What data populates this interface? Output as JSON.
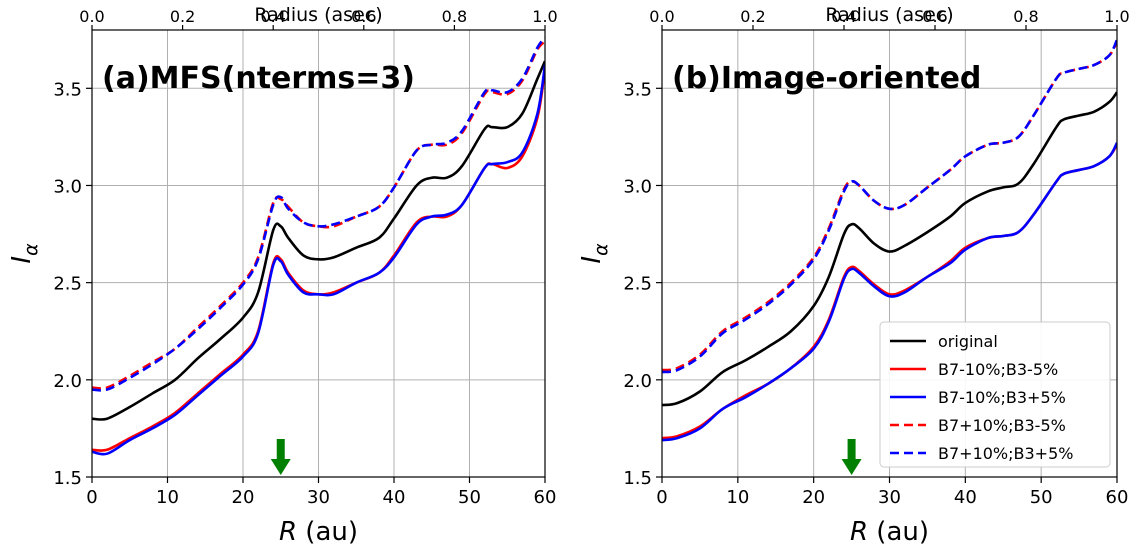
{
  "chart_data": [
    {
      "type": "line",
      "title": "(a)MFS(nterms=3)",
      "xlabel": "R (au)",
      "ylabel": "I_α",
      "top_xlabel": "Radius (asec)",
      "xlim": [
        0,
        60
      ],
      "ylim": [
        1.5,
        3.8
      ],
      "xticks": [
        0,
        10,
        20,
        30,
        40,
        50,
        60
      ],
      "yticks": [
        1.5,
        2.0,
        2.5,
        3.0,
        3.5
      ],
      "top_xticks": [
        0.0,
        0.2,
        0.4,
        0.6,
        0.8,
        1.0
      ],
      "top_xlim": [
        0.0,
        1.0
      ],
      "grid": true,
      "arrow_x": 25,
      "arrow_color": "#008000",
      "x": [
        0,
        2,
        5,
        8,
        11,
        14,
        17,
        20,
        22,
        24,
        25,
        26,
        28,
        30,
        32,
        35,
        38,
        40,
        43,
        45,
        47,
        49,
        52,
        53,
        55,
        57,
        59,
        60
      ],
      "series": [
        {
          "name": "original",
          "color": "#000000",
          "dash": false,
          "values": [
            1.8,
            1.8,
            1.86,
            1.93,
            2.0,
            2.11,
            2.21,
            2.32,
            2.45,
            2.77,
            2.79,
            2.73,
            2.64,
            2.62,
            2.63,
            2.68,
            2.73,
            2.83,
            3.0,
            3.04,
            3.04,
            3.1,
            3.29,
            3.3,
            3.3,
            3.37,
            3.55,
            3.64
          ]
        },
        {
          "name": "B7-10%;B3-5%",
          "color": "#ff0000",
          "dash": false,
          "values": [
            1.64,
            1.64,
            1.7,
            1.76,
            1.83,
            1.93,
            2.03,
            2.13,
            2.25,
            2.6,
            2.62,
            2.55,
            2.46,
            2.44,
            2.45,
            2.5,
            2.55,
            2.64,
            2.81,
            2.84,
            2.84,
            2.9,
            3.09,
            3.11,
            3.09,
            3.15,
            3.35,
            3.6
          ]
        },
        {
          "name": "B7-10%;B3+5%",
          "color": "#0000ff",
          "dash": false,
          "values": [
            1.63,
            1.62,
            1.69,
            1.75,
            1.82,
            1.92,
            2.02,
            2.12,
            2.24,
            2.59,
            2.61,
            2.54,
            2.45,
            2.44,
            2.44,
            2.5,
            2.55,
            2.63,
            2.8,
            2.84,
            2.85,
            2.9,
            3.09,
            3.11,
            3.12,
            3.17,
            3.37,
            3.62
          ]
        },
        {
          "name": "B7+10%;B3-5%",
          "color": "#ff0000",
          "dash": true,
          "values": [
            1.96,
            1.96,
            2.02,
            2.09,
            2.16,
            2.27,
            2.38,
            2.5,
            2.63,
            2.91,
            2.93,
            2.89,
            2.81,
            2.79,
            2.79,
            2.84,
            2.89,
            2.99,
            3.18,
            3.21,
            3.21,
            3.27,
            3.47,
            3.48,
            3.47,
            3.54,
            3.7,
            3.74
          ]
        },
        {
          "name": "B7+10%;B3+5%",
          "color": "#0000ff",
          "dash": true,
          "values": [
            1.95,
            1.95,
            2.01,
            2.08,
            2.16,
            2.26,
            2.37,
            2.49,
            2.62,
            2.9,
            2.94,
            2.88,
            2.81,
            2.79,
            2.8,
            2.84,
            2.89,
            2.99,
            3.18,
            3.21,
            3.22,
            3.28,
            3.48,
            3.49,
            3.48,
            3.55,
            3.71,
            3.76
          ]
        }
      ]
    },
    {
      "type": "line",
      "title": "(b)Image-oriented",
      "xlabel": "R (au)",
      "ylabel": "I_α",
      "top_xlabel": "Radius (asec)",
      "xlim": [
        0,
        60
      ],
      "ylim": [
        1.5,
        3.8
      ],
      "xticks": [
        0,
        10,
        20,
        30,
        40,
        50,
        60
      ],
      "yticks": [
        1.5,
        2.0,
        2.5,
        3.0,
        3.5
      ],
      "top_xticks": [
        0.0,
        0.2,
        0.4,
        0.6,
        0.8,
        1.0
      ],
      "top_xlim": [
        0.0,
        1.0
      ],
      "grid": true,
      "legend_position": "lower-right",
      "arrow_x": 25,
      "arrow_color": "#008000",
      "x": [
        0,
        2,
        5,
        8,
        11,
        14,
        17,
        20,
        22,
        24,
        25,
        26,
        28,
        30,
        32,
        35,
        38,
        40,
        43,
        45,
        47,
        49,
        52,
        53,
        55,
        57,
        59,
        60
      ],
      "series": [
        {
          "name": "original",
          "color": "#000000",
          "dash": false,
          "values": [
            1.87,
            1.88,
            1.94,
            2.04,
            2.1,
            2.17,
            2.25,
            2.38,
            2.53,
            2.75,
            2.8,
            2.78,
            2.7,
            2.66,
            2.69,
            2.76,
            2.84,
            2.91,
            2.97,
            2.99,
            3.01,
            3.11,
            3.3,
            3.34,
            3.36,
            3.38,
            3.43,
            3.48
          ]
        },
        {
          "name": "B7-10%;B3-5%",
          "color": "#ff0000",
          "dash": false,
          "values": [
            1.7,
            1.71,
            1.76,
            1.85,
            1.92,
            1.98,
            2.06,
            2.17,
            2.31,
            2.53,
            2.58,
            2.56,
            2.49,
            2.44,
            2.46,
            2.53,
            2.61,
            2.68,
            2.73,
            2.74,
            2.76,
            2.85,
            3.02,
            3.06,
            3.08,
            3.1,
            3.15,
            3.21
          ]
        },
        {
          "name": "B7-10%;B3+5%",
          "color": "#0000ff",
          "dash": false,
          "values": [
            1.69,
            1.7,
            1.75,
            1.85,
            1.91,
            1.98,
            2.06,
            2.16,
            2.3,
            2.52,
            2.57,
            2.55,
            2.48,
            2.43,
            2.45,
            2.53,
            2.6,
            2.67,
            2.73,
            2.74,
            2.76,
            2.85,
            3.02,
            3.06,
            3.08,
            3.1,
            3.15,
            3.22
          ]
        },
        {
          "name": "B7+10%;B3-5%",
          "color": "#ff0000",
          "dash": true,
          "values": [
            2.05,
            2.06,
            2.13,
            2.25,
            2.32,
            2.4,
            2.5,
            2.63,
            2.78,
            2.98,
            3.02,
            3.0,
            2.92,
            2.88,
            2.9,
            2.99,
            3.08,
            3.15,
            3.21,
            3.22,
            3.25,
            3.36,
            3.55,
            3.58,
            3.6,
            3.62,
            3.67,
            3.74
          ]
        },
        {
          "name": "B7+10%;B3+5%",
          "color": "#0000ff",
          "dash": true,
          "values": [
            2.04,
            2.05,
            2.12,
            2.24,
            2.31,
            2.39,
            2.49,
            2.62,
            2.77,
            2.97,
            3.02,
            3.0,
            2.92,
            2.88,
            2.9,
            2.99,
            3.08,
            3.15,
            3.21,
            3.22,
            3.25,
            3.36,
            3.55,
            3.58,
            3.6,
            3.62,
            3.67,
            3.75
          ]
        }
      ]
    }
  ]
}
